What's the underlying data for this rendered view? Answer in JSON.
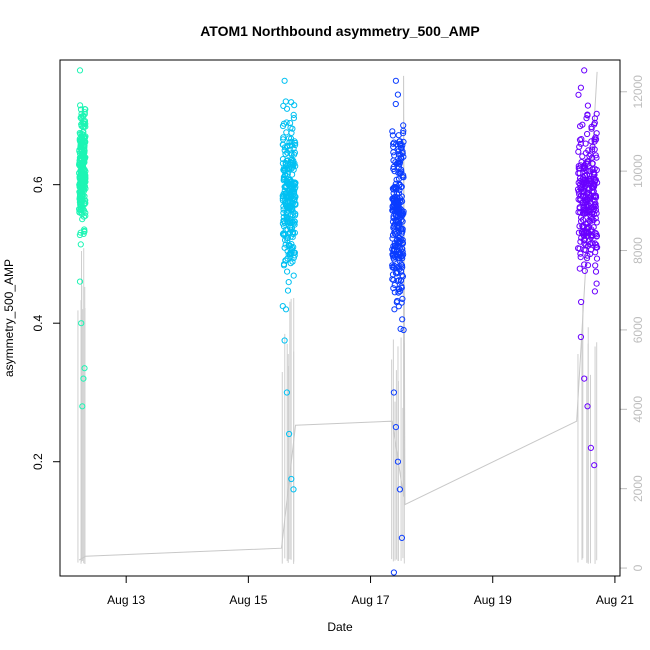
{
  "chart_data": {
    "type": "scatter",
    "title": "ATOM1 Northbound asymmetry_500_AMP",
    "xlabel": "Date",
    "ylabel": "asymmetry_500_AMP",
    "xlim": [
      "2023-08-11T22:00",
      "2023-08-21T02:00"
    ],
    "ylim": [
      0.035,
      0.78
    ],
    "x_ticks": [
      "Aug 13",
      "Aug 15",
      "Aug 17",
      "Aug 19",
      "Aug 21"
    ],
    "y_ticks": [
      "0.2",
      "0.4",
      "0.6"
    ],
    "y2lim": [
      -200,
      12800
    ],
    "y2_ticks": [
      "0",
      "2000",
      "4000",
      "6000",
      "8000",
      "10000",
      "12000"
    ],
    "grid": false,
    "legend": "none",
    "series": [
      {
        "color": "#1DF5B4",
        "x_range": [
          "2023-08-12T05:30",
          "2023-08-12T08:00"
        ],
        "y_core": [
          0.52,
          0.72
        ],
        "outliers": [
          [
            0.46,
            0.4
          ],
          [
            0.28,
            0.32
          ],
          [
            0.335,
            0.765
          ]
        ]
      },
      {
        "color": "#00C0F2",
        "x_range": [
          "2023-08-15T13:30",
          "2023-08-15T18:30"
        ],
        "y_core": [
          0.44,
          0.72
        ],
        "outliers": [
          [
            0.375,
            0.3
          ],
          [
            0.24,
            0.175
          ],
          [
            0.16,
            0.75
          ]
        ]
      },
      {
        "color": "#0A3CFF",
        "x_range": [
          "2023-08-17T08:30",
          "2023-08-17T13:00"
        ],
        "y_core": [
          0.38,
          0.72
        ],
        "outliers": [
          [
            0.3,
            0.25
          ],
          [
            0.2,
            0.16
          ],
          [
            0.09,
            0.04
          ],
          [
            0.75,
            0.73
          ]
        ]
      },
      {
        "color": "#6A00FF",
        "x_range": [
          "2023-08-20T09:30",
          "2023-08-20T17:00"
        ],
        "y_core": [
          0.44,
          0.71
        ],
        "outliers": [
          [
            0.38,
            0.32
          ],
          [
            0.28,
            0.22
          ],
          [
            0.195,
            0.74
          ],
          [
            0.765,
            0.7
          ]
        ]
      }
    ],
    "secondary_line": {
      "color": "#c8c8c8",
      "note": "cumulative index (right axis)",
      "points": [
        [
          "2023-08-12T05:30",
          200
        ],
        [
          "2023-08-12T08:00",
          300
        ],
        [
          "2023-08-15T13:00",
          500
        ],
        [
          "2023-08-15T18:30",
          3600
        ],
        [
          "2023-08-17T08:30",
          3700
        ],
        [
          "2023-08-17T13:00",
          1800
        ],
        [
          "2023-08-17T13:00",
          12400
        ],
        [
          "2023-08-17T13:30",
          1600
        ],
        [
          "2023-08-20T09:00",
          3700
        ],
        [
          "2023-08-20T17:00",
          12500
        ]
      ]
    }
  }
}
